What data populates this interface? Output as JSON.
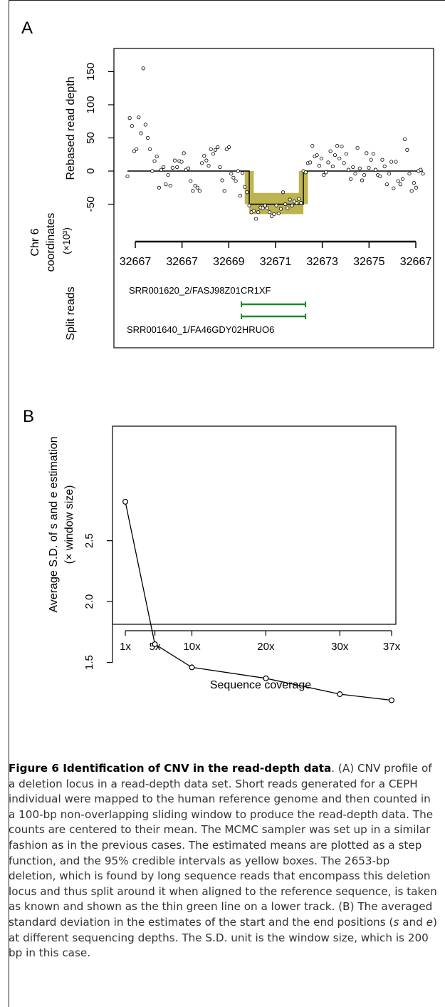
{
  "panel_a": {
    "letter": "A",
    "ylabel": "Rebased read depth",
    "coord_label": [
      "Chr 6",
      "coordinates",
      "(×10³)"
    ],
    "split_label": "Split reads",
    "read1": "SRR001620_2/FASJ98Z01CR1XF",
    "read2": "SRR001640_1/FA46GDY02HRUO6",
    "yticks": [
      "150",
      "100",
      "50",
      "0",
      "-50"
    ],
    "coord_ticks": [
      "32667",
      "32667",
      "32669",
      "32671",
      "32673",
      "32675",
      "32667"
    ],
    "colors": {
      "interval": "#bdb451",
      "split_read": "#1f8a2a"
    }
  },
  "panel_b": {
    "letter": "B",
    "ylabel_line1": "Average S.D. of s and e estimation",
    "ylabel_line2": "(× window size)",
    "xlabel": "Sequence coverage"
  },
  "chart_data": [
    {
      "type": "scatter",
      "title": "",
      "xlabel": "",
      "ylabel": "Rebased read depth",
      "ylim": [
        -75,
        165
      ],
      "grid": false,
      "points": [
        [
          1,
          -8
        ],
        [
          2,
          80
        ],
        [
          3,
          68
        ],
        [
          4,
          30
        ],
        [
          5,
          33
        ],
        [
          6,
          81
        ],
        [
          7,
          57
        ],
        [
          8,
          155
        ],
        [
          9,
          70
        ],
        [
          10,
          50
        ],
        [
          11,
          33
        ],
        [
          12,
          0
        ],
        [
          13,
          15
        ],
        [
          14,
          22
        ],
        [
          15,
          -25
        ],
        [
          16,
          2
        ],
        [
          17,
          6
        ],
        [
          18,
          -20
        ],
        [
          19,
          -6
        ],
        [
          20,
          -22
        ],
        [
          21,
          5
        ],
        [
          22,
          16
        ],
        [
          23,
          6
        ],
        [
          24,
          15
        ],
        [
          25,
          14
        ],
        [
          26,
          27
        ],
        [
          27,
          2
        ],
        [
          28,
          4
        ],
        [
          29,
          -15
        ],
        [
          30,
          -30
        ],
        [
          31,
          -22
        ],
        [
          32,
          -25
        ],
        [
          33,
          -30
        ],
        [
          34,
          12
        ],
        [
          35,
          23
        ],
        [
          36,
          16
        ],
        [
          37,
          8
        ],
        [
          38,
          33
        ],
        [
          39,
          26
        ],
        [
          40,
          32
        ],
        [
          41,
          36
        ],
        [
          42,
          6
        ],
        [
          43,
          -14
        ],
        [
          44,
          -30
        ],
        [
          45,
          33
        ],
        [
          46,
          36
        ],
        [
          47,
          -4
        ],
        [
          48,
          -10
        ],
        [
          49,
          -15
        ],
        [
          50,
          0
        ],
        [
          51,
          -37
        ],
        [
          52,
          -3
        ],
        [
          53,
          -24
        ],
        [
          54,
          -32
        ],
        [
          55,
          -52
        ],
        [
          56,
          -62
        ],
        [
          57,
          -60
        ],
        [
          58,
          -72
        ],
        [
          59,
          -62
        ],
        [
          60,
          -55
        ],
        [
          61,
          -56
        ],
        [
          62,
          -52
        ],
        [
          63,
          -56
        ],
        [
          64,
          -62
        ],
        [
          65,
          -68
        ],
        [
          66,
          -65
        ],
        [
          67,
          -52
        ],
        [
          68,
          -64
        ],
        [
          69,
          -57
        ],
        [
          70,
          -32
        ],
        [
          71,
          -50
        ],
        [
          72,
          -56
        ],
        [
          73,
          -43
        ],
        [
          74,
          -52
        ],
        [
          75,
          -46
        ],
        [
          76,
          -48
        ],
        [
          77,
          -42
        ],
        [
          78,
          -48
        ],
        [
          79,
          0
        ],
        [
          80,
          -2
        ],
        [
          81,
          12
        ],
        [
          82,
          13
        ],
        [
          83,
          38
        ],
        [
          84,
          22
        ],
        [
          85,
          24
        ],
        [
          86,
          8
        ],
        [
          87,
          19
        ],
        [
          88,
          -6
        ],
        [
          89,
          -2
        ],
        [
          90,
          13
        ],
        [
          91,
          30
        ],
        [
          92,
          7
        ],
        [
          93,
          24
        ],
        [
          94,
          38
        ],
        [
          95,
          19
        ],
        [
          96,
          37
        ],
        [
          97,
          12
        ],
        [
          98,
          26
        ],
        [
          99,
          2
        ],
        [
          100,
          -12
        ],
        [
          101,
          6
        ],
        [
          102,
          -4
        ],
        [
          103,
          35
        ],
        [
          104,
          4
        ],
        [
          105,
          -14
        ],
        [
          106,
          -6
        ],
        [
          107,
          27
        ],
        [
          108,
          5
        ],
        [
          109,
          17
        ],
        [
          110,
          26
        ],
        [
          111,
          2
        ],
        [
          112,
          -6
        ],
        [
          113,
          -8
        ],
        [
          114,
          17
        ],
        [
          115,
          7
        ],
        [
          116,
          -20
        ],
        [
          117,
          -4
        ],
        [
          118,
          14
        ],
        [
          119,
          -26
        ],
        [
          120,
          14
        ],
        [
          121,
          -15
        ],
        [
          122,
          -20
        ],
        [
          123,
          -12
        ],
        [
          124,
          48
        ],
        [
          125,
          32
        ],
        [
          126,
          -4
        ],
        [
          127,
          -30
        ],
        [
          128,
          -18
        ],
        [
          129,
          -25
        ],
        [
          130,
          0
        ],
        [
          131,
          2
        ],
        [
          132,
          -4
        ]
      ],
      "step_function": [
        [
          1,
          0
        ],
        [
          55,
          0
        ],
        [
          55,
          -50
        ],
        [
          79,
          -50
        ],
        [
          79,
          0
        ],
        [
          132,
          0
        ]
      ],
      "interval_boxes": [
        {
          "x0": 53,
          "x1": 57,
          "y0": -50,
          "y1": 0
        },
        {
          "x0": 55,
          "x1": 79,
          "y0": -65,
          "y1": -33
        },
        {
          "x0": 77,
          "x1": 81,
          "y0": -50,
          "y1": 0
        }
      ],
      "split_reads": [
        {
          "name": "SRR001620_2/FASJ98Z01CR1XF",
          "x0": 55,
          "x1": 79
        },
        {
          "name": "SRR001640_1/FA46GDY02HRUO6",
          "x0": 55,
          "x1": 79
        }
      ]
    },
    {
      "type": "line",
      "title": "",
      "xlabel": "Sequence coverage",
      "ylabel": "Average S.D. of s and e estimation (× window size)",
      "categories": [
        "1x",
        "5x",
        "10x",
        "20x",
        "30x",
        "37x"
      ],
      "x": [
        1,
        5,
        10,
        20,
        30,
        37
      ],
      "values": [
        2.82,
        1.65,
        1.46,
        1.37,
        1.24,
        1.19
      ],
      "yticks": [
        "1.5",
        "2.0",
        "2.5"
      ],
      "ylim": [
        1.12,
        2.85
      ],
      "grid": false
    }
  ],
  "caption": {
    "title": "Figure 6 Identification of CNV in the read-depth data",
    "body_1": ". (A) CNV profile of a deletion locus in a read-depth data set. Short reads generated for a CEPH individual were mapped to the human reference genome and then counted in a 100-bp non-overlapping sliding window to produce the read-depth data. The counts are centered to their mean. The MCMC sampler was set up in a similar fashion as in the previous cases. The estimated means are plotted as a step function, and the 95% credible intervals as yellow boxes. The 2653-bp deletion, which is found by long sequence reads that encompass this deletion locus and thus split around it when aligned to the reference sequence, is taken as known and shown as the thin green line on a lower track. (B) The averaged standard deviation in the estimates of the start and the end positions (",
    "s": "s",
    "and": " and ",
    "e": "e",
    "body_2": ") at different sequencing depths. The S.D. unit is the window size, which is 200 bp in this case."
  }
}
